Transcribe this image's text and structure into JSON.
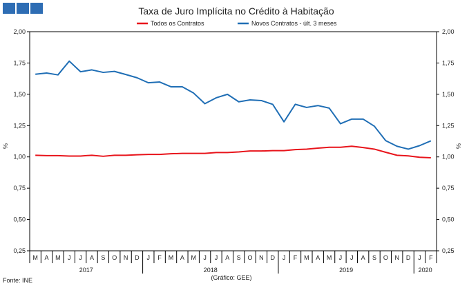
{
  "chart_data": {
    "type": "line",
    "title": "Taxa de Juro Implícita no Crédito à Habitação",
    "ylabel": "%",
    "ylim": [
      0.25,
      2.0
    ],
    "yticks": [
      "2,00",
      "1,75",
      "1,50",
      "1,25",
      "1,00",
      "0,75",
      "0,50",
      "0,25"
    ],
    "ytick_values": [
      2.0,
      1.75,
      1.5,
      1.25,
      1.0,
      0.75,
      0.5,
      0.25
    ],
    "months": [
      "M",
      "A",
      "M",
      "J",
      "J",
      "A",
      "S",
      "O",
      "N",
      "D",
      "J",
      "F",
      "M",
      "A",
      "M",
      "J",
      "J",
      "A",
      "S",
      "O",
      "N",
      "D",
      "J",
      "F",
      "M",
      "A",
      "M",
      "J",
      "J",
      "A",
      "S",
      "O",
      "N",
      "D",
      "J",
      "F"
    ],
    "years": [
      {
        "label": "2017",
        "start": 0,
        "end": 9
      },
      {
        "label": "2018",
        "start": 10,
        "end": 21
      },
      {
        "label": "2019",
        "start": 22,
        "end": 33
      },
      {
        "label": "2020",
        "start": 34,
        "end": 35
      }
    ],
    "legend_position": "top-center",
    "series": [
      {
        "name": "Todos os Contratos",
        "color": "#e8141b",
        "values": [
          1.013,
          1.01,
          1.01,
          1.007,
          1.007,
          1.013,
          1.005,
          1.013,
          1.013,
          1.017,
          1.02,
          1.02,
          1.025,
          1.028,
          1.028,
          1.028,
          1.035,
          1.035,
          1.04,
          1.047,
          1.047,
          1.05,
          1.05,
          1.058,
          1.062,
          1.07,
          1.077,
          1.077,
          1.085,
          1.075,
          1.062,
          1.037,
          1.013,
          1.008,
          0.997,
          0.993
        ]
      },
      {
        "name": "Novos Contratos - últ. 3 meses",
        "color": "#1f6eb5",
        "values": [
          1.66,
          1.67,
          1.655,
          1.765,
          1.68,
          1.695,
          1.675,
          1.683,
          1.658,
          1.632,
          1.592,
          1.598,
          1.56,
          1.56,
          1.51,
          1.425,
          1.472,
          1.5,
          1.44,
          1.455,
          1.45,
          1.42,
          1.28,
          1.42,
          1.395,
          1.41,
          1.39,
          1.265,
          1.302,
          1.302,
          1.245,
          1.13,
          1.085,
          1.062,
          1.09,
          1.128
        ]
      }
    ]
  },
  "footer": {
    "source": "Fonte: INE",
    "credit": "(Gráfico: GEE)"
  }
}
